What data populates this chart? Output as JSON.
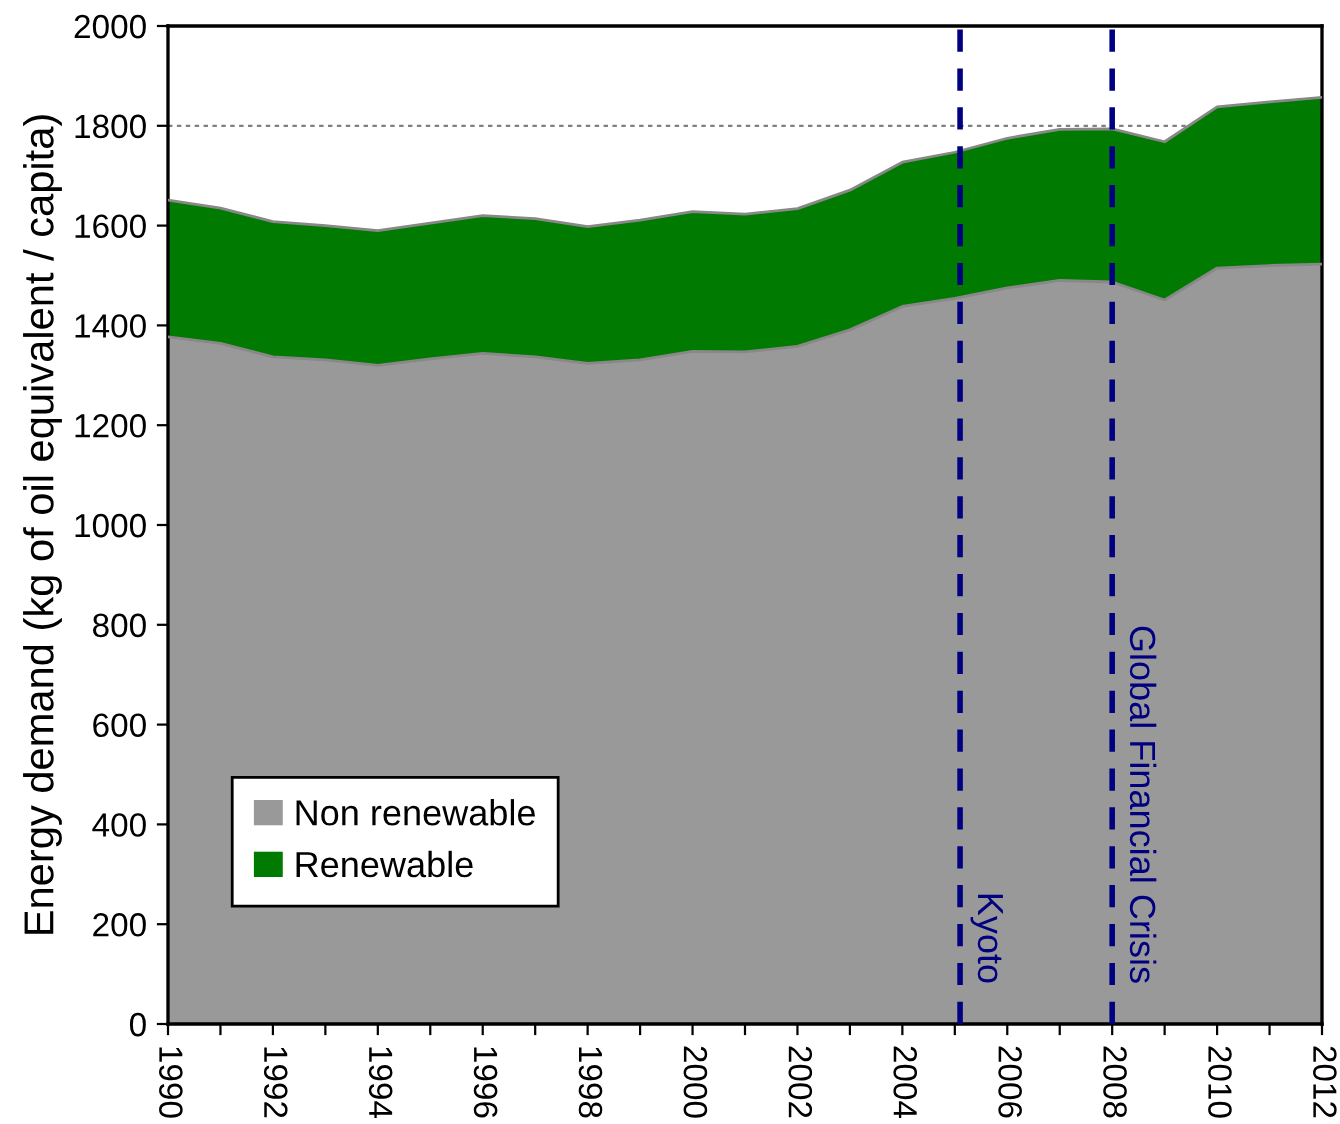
{
  "chart_data": {
    "type": "area",
    "stacked": true,
    "ylabel": "Energy demand (kg of oil equivalent / capita)",
    "x": [
      1990,
      1991,
      1992,
      1993,
      1994,
      1995,
      1996,
      1997,
      1998,
      1999,
      2000,
      2001,
      2002,
      2003,
      2004,
      2005,
      2006,
      2007,
      2008,
      2009,
      2010,
      2011,
      2012
    ],
    "series": [
      {
        "name": "Non renewable",
        "color": "#999999",
        "values": [
          1377,
          1364,
          1337,
          1331,
          1320,
          1333,
          1344,
          1337,
          1324,
          1331,
          1348,
          1347,
          1358,
          1391,
          1438,
          1454,
          1475,
          1490,
          1487,
          1451,
          1515,
          1520,
          1523
        ]
      },
      {
        "name": "Renewable",
        "color": "#007a00",
        "values": [
          274,
          271,
          271,
          269,
          270,
          272,
          276,
          277,
          274,
          280,
          280,
          276,
          276,
          280,
          289,
          293,
          300,
          303,
          307,
          317,
          323,
          328,
          334
        ]
      }
    ],
    "xlim": [
      1990,
      2012
    ],
    "xticks": [
      1990,
      {
        "value": 1991,
        "label": null
      },
      1992,
      {
        "value": 1993,
        "label": null
      },
      1994,
      {
        "value": 1995,
        "label": null
      },
      1996,
      {
        "value": 1997,
        "label": null
      },
      1998,
      {
        "value": 1999,
        "label": null
      },
      2000,
      {
        "value": 2001,
        "label": null
      },
      2002,
      {
        "value": 2003,
        "label": null
      },
      2004,
      {
        "value": 2005,
        "label": null
      },
      2006,
      {
        "value": 2007,
        "label": null
      },
      2008,
      {
        "value": 2009,
        "label": null
      },
      2010,
      {
        "value": 2011,
        "label": null
      },
      2012
    ],
    "ylim": [
      0,
      2000
    ],
    "yticks": [
      0,
      200,
      400,
      600,
      800,
      1000,
      1200,
      1400,
      1600,
      1800,
      2000
    ],
    "ref_lines": [
      {
        "axis": "y",
        "value": 1800,
        "label": null,
        "color": "#808080",
        "line_style": "dotted"
      },
      {
        "axis": "x",
        "value": 2005.1,
        "label": "Kyoto",
        "color": "#000080",
        "line_style": "dashed"
      },
      {
        "axis": "x",
        "value": 2008,
        "label": "Global Financial Crisis",
        "color": "#000080",
        "line_style": "dashed"
      }
    ],
    "grid": false,
    "legend": "bottom left"
  }
}
